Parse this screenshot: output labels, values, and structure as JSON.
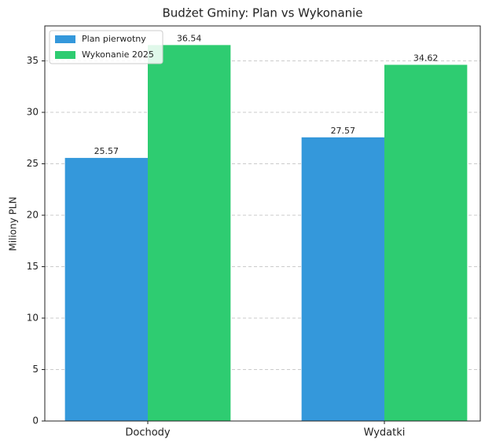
{
  "chart_data": {
    "type": "bar",
    "title": "Budżet Gminy: Plan vs Wykonanie",
    "y_label": "Miliony PLN",
    "categories": [
      "Dochody",
      "Wydatki"
    ],
    "series": [
      {
        "name": "Plan pierwotny",
        "color": "#3498db",
        "values": [
          25.57,
          27.57
        ]
      },
      {
        "name": "Wykonanie 2025",
        "color": "#2ecc71",
        "values": [
          36.54,
          34.62
        ]
      }
    ],
    "ylim": [
      0,
      38.4
    ],
    "yticks": [
      0,
      5,
      10,
      15,
      20,
      25,
      30,
      35
    ],
    "grid": true,
    "legend": "upper left"
  }
}
